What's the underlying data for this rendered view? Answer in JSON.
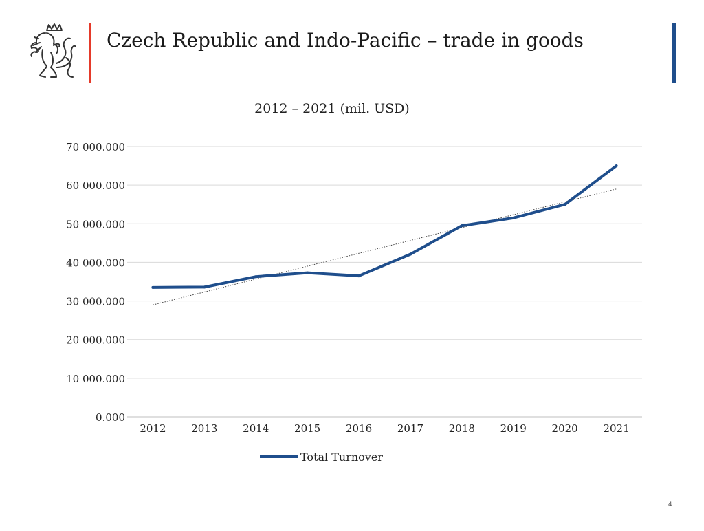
{
  "slide": {
    "title": "Czech Republic and Indo-Pacific – trade in goods",
    "page_number": "| 4",
    "logo_icon": "czech-lion-emblem-icon"
  },
  "colors": {
    "accent_red": "#e53a2a",
    "accent_blue": "#1f4e8c",
    "series_line": "#1f4e8c",
    "gridline": "#d9d9d9",
    "trendline": "#444444"
  },
  "chart_data": {
    "type": "line",
    "title": "2012 – 2021 (mil. USD)",
    "xlabel": "",
    "ylabel": "",
    "categories": [
      "2012",
      "2013",
      "2014",
      "2015",
      "2016",
      "2017",
      "2018",
      "2019",
      "2020",
      "2021"
    ],
    "series": [
      {
        "name": "Total Turnover",
        "values": [
          33500,
          33600,
          36300,
          37300,
          36500,
          42100,
          49500,
          51500,
          55000,
          65000
        ],
        "color": "#1f4e8c"
      }
    ],
    "trendline": {
      "type": "linear",
      "style": "dotted",
      "start": 29000,
      "end": 59000
    },
    "ylim": [
      0,
      70000
    ],
    "yticks": [
      0,
      10000,
      20000,
      30000,
      40000,
      50000,
      60000,
      70000
    ],
    "ytick_labels": [
      "0.000",
      "10 000.000",
      "20 000.000",
      "30 000.000",
      "40 000.000",
      "50 000.000",
      "60 000.000",
      "70 000.000"
    ],
    "grid": true,
    "legend": "bottom"
  }
}
